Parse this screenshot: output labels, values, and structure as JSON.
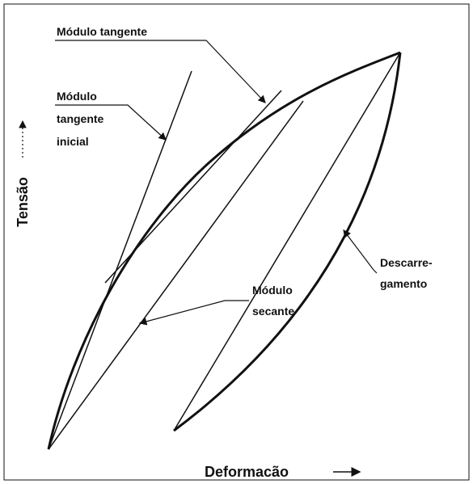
{
  "labels": {
    "tangent": "Módulo  tangente",
    "initial": [
      "Módulo",
      "tangente",
      "inicial"
    ],
    "secant": [
      "Módulo",
      "secante"
    ],
    "unloading": [
      "Descarre-",
      "gamento"
    ]
  },
  "axes": {
    "y": "Tensão",
    "x": "Deformacão"
  }
}
